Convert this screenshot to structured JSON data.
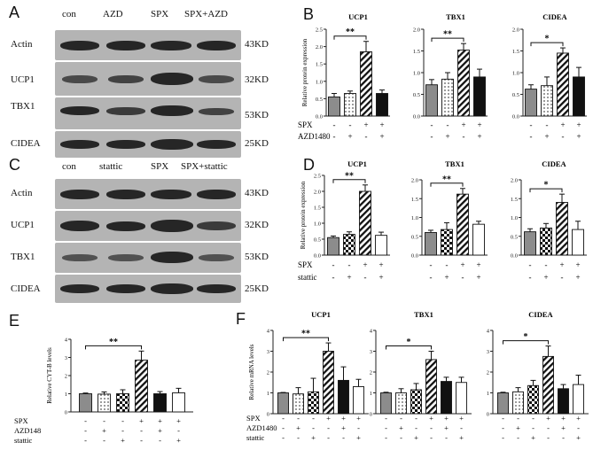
{
  "panels": {
    "A": "A",
    "B": "B",
    "C": "C",
    "D": "D",
    "E": "E",
    "F": "F"
  },
  "blotA": {
    "lanes": [
      "con",
      "AZD",
      "SPX",
      "SPX+AZD"
    ],
    "rows": [
      {
        "name": "Actin",
        "kd": "43KD"
      },
      {
        "name": "UCP1",
        "kd": "32KD"
      },
      {
        "name": "TBX1",
        "kd": "53KD"
      },
      {
        "name": "CIDEA",
        "kd": "25KD"
      }
    ]
  },
  "blotC": {
    "lanes": [
      "con",
      "stattic",
      "SPX",
      "SPX+stattic"
    ],
    "rows": [
      {
        "name": "Actin",
        "kd": "43KD"
      },
      {
        "name": "UCP1",
        "kd": "32KD"
      },
      {
        "name": "TBX1",
        "kd": "53KD"
      },
      {
        "name": "CIDEA",
        "kd": "25KD"
      }
    ]
  },
  "chart_data": [
    {
      "panel": "B",
      "type": "bar",
      "title": "UCP1",
      "ylabel": "Relative protein expression",
      "ylim": [
        0,
        2.5
      ],
      "yticks": [
        0.0,
        0.5,
        1.0,
        1.5,
        2.0,
        2.5
      ],
      "values": [
        0.55,
        0.65,
        1.85,
        0.65
      ],
      "errors": [
        0.1,
        0.07,
        0.3,
        0.1
      ],
      "sig": {
        "from": 0,
        "to": 2,
        "label": "**"
      }
    },
    {
      "panel": "B",
      "type": "bar",
      "title": "TBX1",
      "ylim": [
        0,
        2.0
      ],
      "yticks": [
        0.0,
        0.5,
        1.0,
        1.5,
        2.0
      ],
      "values": [
        0.72,
        0.85,
        1.52,
        0.9
      ],
      "errors": [
        0.12,
        0.15,
        0.15,
        0.18
      ],
      "sig": {
        "from": 0,
        "to": 2,
        "label": "**"
      }
    },
    {
      "panel": "B",
      "type": "bar",
      "title": "CIDEA",
      "ylim": [
        0,
        2.0
      ],
      "yticks": [
        0.0,
        0.5,
        1.0,
        1.5,
        2.0
      ],
      "values": [
        0.62,
        0.7,
        1.45,
        0.9
      ],
      "errors": [
        0.1,
        0.2,
        0.12,
        0.22
      ],
      "sig": {
        "from": 0,
        "to": 2,
        "label": "*"
      }
    },
    {
      "panel": "D",
      "type": "bar",
      "title": "UCP1",
      "ylabel": "Relative protein expression",
      "ylim": [
        0,
        2.5
      ],
      "yticks": [
        0.0,
        0.5,
        1.0,
        1.5,
        2.0,
        2.5
      ],
      "values": [
        0.55,
        0.65,
        2.0,
        0.62
      ],
      "errors": [
        0.05,
        0.08,
        0.2,
        0.1
      ],
      "sig": {
        "from": 0,
        "to": 2,
        "label": "**"
      }
    },
    {
      "panel": "D",
      "type": "bar",
      "title": "TBX1",
      "ylim": [
        0,
        2.0
      ],
      "yticks": [
        0.0,
        0.5,
        1.0,
        1.5,
        2.0
      ],
      "values": [
        0.6,
        0.68,
        1.62,
        0.82
      ],
      "errors": [
        0.06,
        0.18,
        0.15,
        0.08
      ],
      "sig": {
        "from": 0,
        "to": 2,
        "label": "**"
      }
    },
    {
      "panel": "D",
      "type": "bar",
      "title": "CIDEA",
      "ylim": [
        0,
        2.0
      ],
      "yticks": [
        0.0,
        0.5,
        1.0,
        1.5,
        2.0
      ],
      "values": [
        0.62,
        0.72,
        1.4,
        0.68
      ],
      "errors": [
        0.08,
        0.12,
        0.22,
        0.22
      ],
      "sig": {
        "from": 0,
        "to": 2,
        "label": "*"
      }
    },
    {
      "panel": "E",
      "type": "bar",
      "ylabel": "Relative CYT-B levels",
      "ylim": [
        0,
        4
      ],
      "yticks": [
        0,
        1,
        2,
        3,
        4
      ],
      "values": [
        1.0,
        0.98,
        1.0,
        2.85,
        1.0,
        1.05
      ],
      "errors": [
        0.04,
        0.12,
        0.22,
        0.5,
        0.12,
        0.25
      ],
      "sig": {
        "from": 0,
        "to": 3,
        "label": "**"
      }
    },
    {
      "panel": "F",
      "type": "bar",
      "title": "UCP1",
      "ylabel": "Relative mRNA levels",
      "ylim": [
        0,
        4
      ],
      "yticks": [
        0,
        1,
        2,
        3,
        4
      ],
      "values": [
        1.0,
        0.95,
        1.05,
        3.0,
        1.6,
        1.3
      ],
      "errors": [
        0.02,
        0.3,
        0.65,
        0.4,
        0.65,
        0.35
      ],
      "sig": {
        "from": 0,
        "to": 3,
        "label": "**"
      }
    },
    {
      "panel": "F",
      "type": "bar",
      "title": "TBX1",
      "ylim": [
        0,
        4
      ],
      "yticks": [
        0,
        1,
        2,
        3,
        4
      ],
      "values": [
        1.0,
        1.0,
        1.15,
        2.6,
        1.55,
        1.5
      ],
      "errors": [
        0.03,
        0.2,
        0.3,
        0.4,
        0.2,
        0.25
      ],
      "sig": {
        "from": 0,
        "to": 3,
        "label": "*"
      }
    },
    {
      "panel": "F",
      "type": "bar",
      "title": "CIDEA",
      "ylim": [
        0,
        4
      ],
      "yticks": [
        0,
        1,
        2,
        3,
        4
      ],
      "values": [
        1.0,
        1.05,
        1.35,
        2.75,
        1.2,
        1.4
      ],
      "errors": [
        0.03,
        0.2,
        0.25,
        0.5,
        0.2,
        0.45
      ],
      "sig": {
        "from": 0,
        "to": 3,
        "label": "*"
      }
    }
  ],
  "treatments": {
    "B": {
      "rows": [
        {
          "label": "SPX",
          "marks": [
            "-",
            "-",
            "+",
            "+"
          ]
        },
        {
          "label": "AZD1480",
          "marks": [
            "-",
            "+",
            "-",
            "+"
          ]
        }
      ]
    },
    "D": {
      "rows": [
        {
          "label": "SPX",
          "marks": [
            "-",
            "-",
            "+",
            "+"
          ]
        },
        {
          "label": "stattic",
          "marks": [
            "-",
            "+",
            "-",
            "+"
          ]
        }
      ]
    },
    "E": {
      "rows": [
        {
          "label": "SPX",
          "marks": [
            "-",
            "-",
            "-",
            "+",
            "+",
            "+"
          ]
        },
        {
          "label": "AZD148",
          "marks": [
            "-",
            "+",
            "-",
            "-",
            "+",
            "-"
          ]
        },
        {
          "label": "stattic",
          "marks": [
            "-",
            "-",
            "+",
            "-",
            "-",
            "+"
          ]
        }
      ]
    },
    "F": {
      "rows": [
        {
          "label": "SPX",
          "marks": [
            "-",
            "-",
            "-",
            "+",
            "+",
            "+"
          ]
        },
        {
          "label": "AZD1480",
          "marks": [
            "-",
            "+",
            "-",
            "-",
            "+",
            "-"
          ]
        },
        {
          "label": "stattic",
          "marks": [
            "-",
            "-",
            "+",
            "-",
            "-",
            "+"
          ]
        }
      ]
    }
  },
  "colors": {
    "bar_gray": "#8c8c8c",
    "bar_black": "#111111",
    "membrane": "#b4b4b4",
    "band": "#262626"
  }
}
